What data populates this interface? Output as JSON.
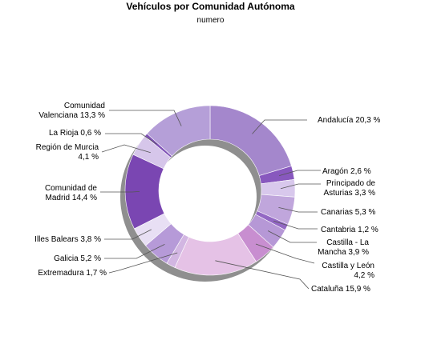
{
  "chart_data": {
    "type": "pie",
    "variant": "donut",
    "title": "Vehículos por Comunidad Autónoma",
    "subtitle": "numero",
    "legend": "none",
    "slices": [
      {
        "lines": [
          "Andalucía 20,3 %"
        ],
        "value": 20.3,
        "color": "#a487cc"
      },
      {
        "lines": [
          "Aragón 2,6 %"
        ],
        "value": 2.6,
        "color": "#8858be"
      },
      {
        "lines": [
          "Principado de",
          "Asturias 3,3 %"
        ],
        "value": 3.3,
        "color": "#d8c8ec"
      },
      {
        "lines": [
          "Canarias 5,3 %"
        ],
        "value": 5.3,
        "color": "#c0a6dc"
      },
      {
        "lines": [
          "Cantabria 1,2 %"
        ],
        "value": 1.2,
        "color": "#9368c4"
      },
      {
        "lines": [
          "Castilla - La",
          "Mancha 3,9 %"
        ],
        "value": 3.9,
        "color": "#b698d6"
      },
      {
        "lines": [
          "Castilla y León",
          "4,2 %"
        ],
        "value": 4.2,
        "color": "#c88ed0"
      },
      {
        "lines": [
          "Cataluña 15,9 %"
        ],
        "value": 15.9,
        "color": "#e5c2e6"
      },
      {
        "lines": [
          "Extremadura 1,7 %"
        ],
        "value": 1.7,
        "color": "#d2b6e2"
      },
      {
        "lines": [
          "Galicia 5,2 %"
        ],
        "value": 5.2,
        "color": "#b69ad8"
      },
      {
        "lines": [
          "Illes Balears 3,8 %"
        ],
        "value": 3.8,
        "color": "#e8dff4"
      },
      {
        "lines": [
          "Comunidad de",
          "Madrid 14,4 %"
        ],
        "value": 14.4,
        "color": "#7a46b2"
      },
      {
        "lines": [
          "Región de Murcia",
          "4,1 %"
        ],
        "value": 4.1,
        "color": "#d6c6ea"
      },
      {
        "lines": [
          "La Rioja 0,6 %"
        ],
        "value": 0.6,
        "color": "#7f52b6"
      },
      {
        "lines": [
          "Comunidad",
          "Valenciana 13,3 %"
        ],
        "value": 13.3,
        "color": "#b59fd8"
      }
    ]
  }
}
